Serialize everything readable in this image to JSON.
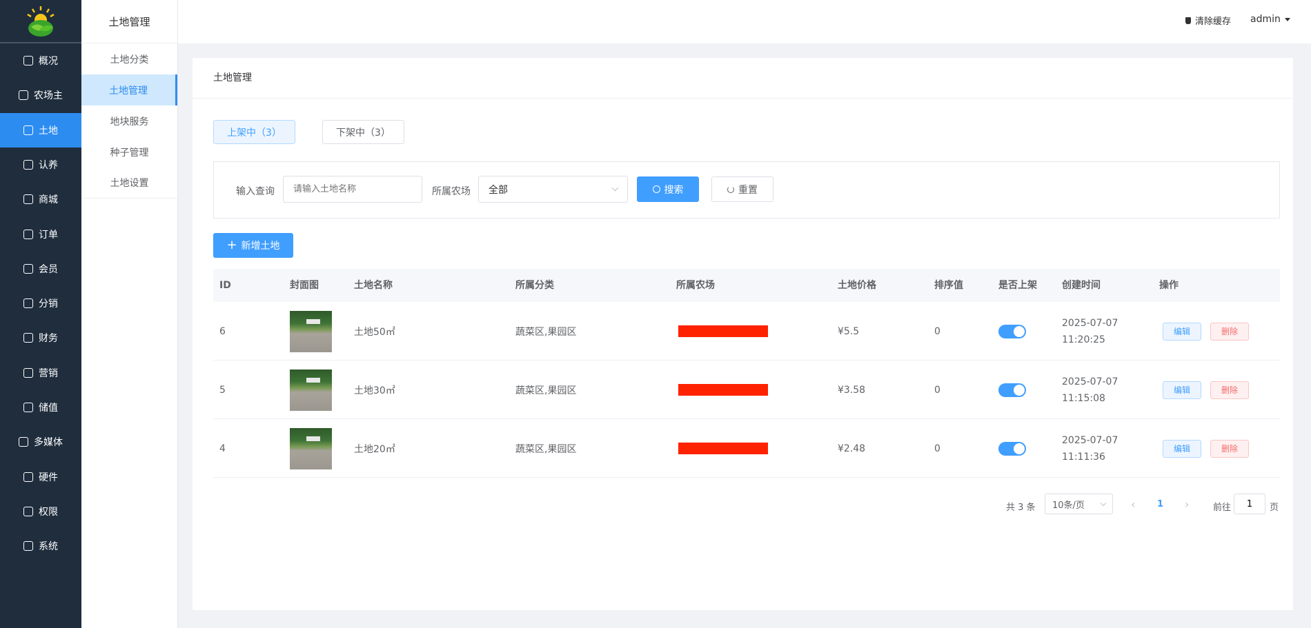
{
  "sidebar": {
    "items": [
      {
        "label": "概况",
        "icon": "home-icon"
      },
      {
        "label": "农场主",
        "icon": "user-group-icon"
      },
      {
        "label": "土地",
        "icon": "land-icon",
        "active": true
      },
      {
        "label": "认养",
        "icon": "adopt-icon"
      },
      {
        "label": "商城",
        "icon": "store-icon"
      },
      {
        "label": "订单",
        "icon": "order-icon"
      },
      {
        "label": "会员",
        "icon": "member-icon"
      },
      {
        "label": "分销",
        "icon": "distribution-icon"
      },
      {
        "label": "财务",
        "icon": "finance-icon"
      },
      {
        "label": "营销",
        "icon": "marketing-icon"
      },
      {
        "label": "储值",
        "icon": "wallet-icon"
      },
      {
        "label": "多媒体",
        "icon": "media-icon"
      },
      {
        "label": "硬件",
        "icon": "hardware-icon"
      },
      {
        "label": "权限",
        "icon": "permission-icon"
      },
      {
        "label": "系统",
        "icon": "gear-icon"
      }
    ]
  },
  "submenu": {
    "title": "土地管理",
    "items": [
      {
        "label": "土地分类"
      },
      {
        "label": "土地管理",
        "active": true
      },
      {
        "label": "地块服务"
      },
      {
        "label": "种子管理"
      },
      {
        "label": "土地设置"
      }
    ]
  },
  "topbar": {
    "clear_cache": "清除缓存",
    "user": "admin"
  },
  "card": {
    "title": "土地管理"
  },
  "tabs": [
    {
      "label": "上架中（3）",
      "active": true
    },
    {
      "label": "下架中（3）"
    }
  ],
  "search": {
    "query_label": "输入查询",
    "query_placeholder": "请输入土地名称",
    "farm_label": "所属农场",
    "farm_value": "全部",
    "search_btn": "搜索",
    "reset_btn": "重置"
  },
  "add_btn": "新增土地",
  "table": {
    "headers": [
      "ID",
      "封面图",
      "土地名称",
      "所属分类",
      "所属农场",
      "土地价格",
      "排序值",
      "是否上架",
      "创建时间",
      "操作"
    ],
    "rows": [
      {
        "id": "6",
        "name": "土地50㎡",
        "category": "蔬菜区,果园区",
        "price": "¥5.5",
        "sort": "0",
        "on_shelf": true,
        "date": "2025-07-07",
        "time": "11:20:25",
        "edit": "编辑",
        "delete": "删除"
      },
      {
        "id": "5",
        "name": "土地30㎡",
        "category": "蔬菜区,果园区",
        "price": "¥3.58",
        "sort": "0",
        "on_shelf": true,
        "date": "2025-07-07",
        "time": "11:15:08",
        "edit": "编辑",
        "delete": "删除"
      },
      {
        "id": "4",
        "name": "土地20㎡",
        "category": "蔬菜区,果园区",
        "price": "¥2.48",
        "sort": "0",
        "on_shelf": true,
        "date": "2025-07-07",
        "time": "11:11:36",
        "edit": "编辑",
        "delete": "删除"
      }
    ]
  },
  "pagination": {
    "total": "共 3 条",
    "page_size": "10条/页",
    "current": "1",
    "goto_label": "前往",
    "goto_value": "1",
    "page_suffix": "页"
  },
  "colors": {
    "accent": "#409eff",
    "sidebar_bg": "#1f2d3d",
    "active_menu": "#2d8cf0",
    "danger": "#f56c6c"
  }
}
